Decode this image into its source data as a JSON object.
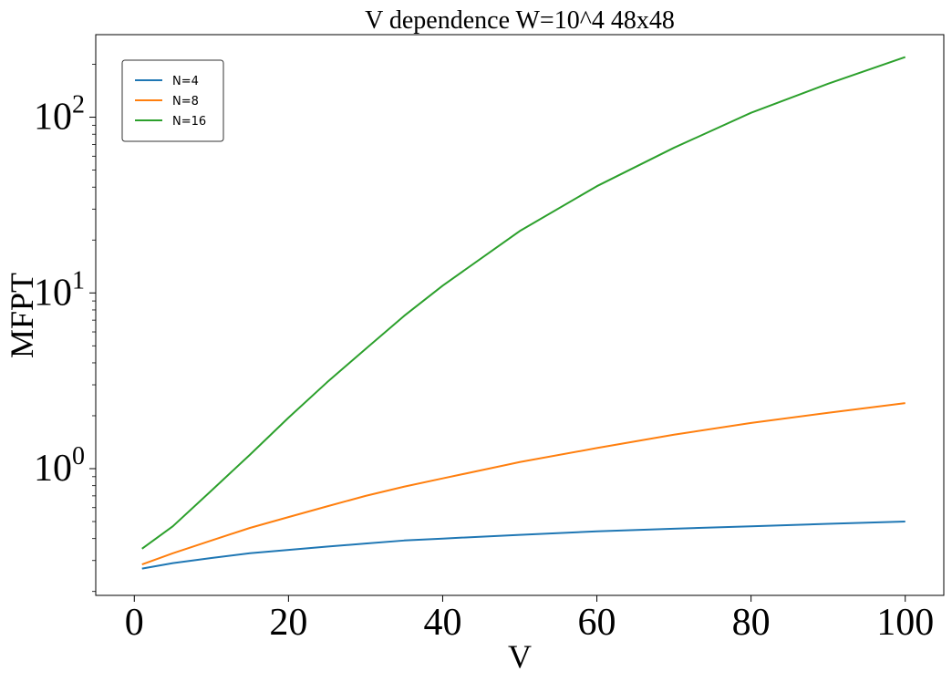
{
  "chart_data": {
    "type": "line",
    "title": "V dependence  W=10^4  48x48",
    "xlabel": "V",
    "ylabel": "MFPT",
    "xlim": [
      -5,
      105
    ],
    "ylim": [
      0.19,
      295
    ],
    "yscale": "log",
    "grid": false,
    "legend_position": "top-left",
    "xticks": [
      {
        "value": 0,
        "label": "0"
      },
      {
        "value": 20,
        "label": "20"
      },
      {
        "value": 40,
        "label": "40"
      },
      {
        "value": 60,
        "label": "60"
      },
      {
        "value": 80,
        "label": "80"
      },
      {
        "value": 100,
        "label": "100"
      }
    ],
    "yticks": [
      {
        "value": 1,
        "base": "10",
        "exp": "0"
      },
      {
        "value": 10,
        "base": "10",
        "exp": "1"
      },
      {
        "value": 100,
        "base": "10",
        "exp": "2"
      }
    ],
    "series": [
      {
        "name": "N=4",
        "color": "#1f77b4",
        "x": [
          1,
          5,
          10,
          15,
          20,
          25,
          30,
          35,
          40,
          50,
          60,
          70,
          80,
          90,
          100
        ],
        "y": [
          0.27,
          0.29,
          0.31,
          0.33,
          0.345,
          0.36,
          0.375,
          0.39,
          0.4,
          0.42,
          0.44,
          0.455,
          0.47,
          0.485,
          0.5
        ]
      },
      {
        "name": "N=8",
        "color": "#ff7f0e",
        "x": [
          1,
          5,
          10,
          15,
          20,
          25,
          30,
          35,
          40,
          50,
          60,
          70,
          80,
          90,
          100
        ],
        "y": [
          0.285,
          0.33,
          0.39,
          0.46,
          0.53,
          0.61,
          0.7,
          0.79,
          0.88,
          1.09,
          1.31,
          1.56,
          1.82,
          2.08,
          2.36
        ]
      },
      {
        "name": "N=16",
        "color": "#2ca02c",
        "x": [
          1,
          5,
          10,
          15,
          20,
          25,
          30,
          35,
          40,
          50,
          60,
          70,
          80,
          90,
          100
        ],
        "y": [
          0.35,
          0.47,
          0.75,
          1.2,
          1.95,
          3.1,
          4.8,
          7.4,
          11.0,
          22.5,
          40.5,
          67,
          106,
          155,
          220
        ]
      }
    ]
  }
}
